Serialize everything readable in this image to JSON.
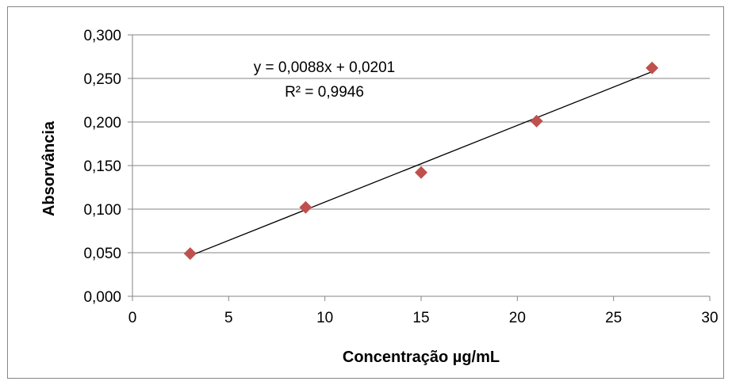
{
  "chart_data": {
    "type": "scatter",
    "title": "",
    "xlabel": "Concentração µg/mL",
    "ylabel": "Absorvância",
    "xlim": [
      0,
      30
    ],
    "ylim": [
      0,
      0.3
    ],
    "x_ticks": [
      0,
      5,
      10,
      15,
      20,
      25,
      30
    ],
    "x_tick_labels": [
      "0",
      "5",
      "10",
      "15",
      "20",
      "25",
      "30"
    ],
    "y_ticks": [
      0,
      0.05,
      0.1,
      0.15,
      0.2,
      0.25,
      0.3
    ],
    "y_tick_labels": [
      "0,000",
      "0,050",
      "0,100",
      "0,150",
      "0,200",
      "0,250",
      "0,300"
    ],
    "grid": "horizontal",
    "series": [
      {
        "marker": "diamond",
        "color": "#C0504D",
        "x": [
          3,
          9,
          15,
          21,
          27
        ],
        "y": [
          0.049,
          0.102,
          0.142,
          0.201,
          0.262
        ]
      }
    ],
    "trendline": {
      "type": "linear",
      "slope": 0.0088,
      "intercept": 0.0201,
      "x_range": [
        3,
        27
      ],
      "color": "#000000",
      "equation_label": "y = 0,0088x + 0,0201",
      "r2_label": "R² = 0,9946"
    }
  }
}
